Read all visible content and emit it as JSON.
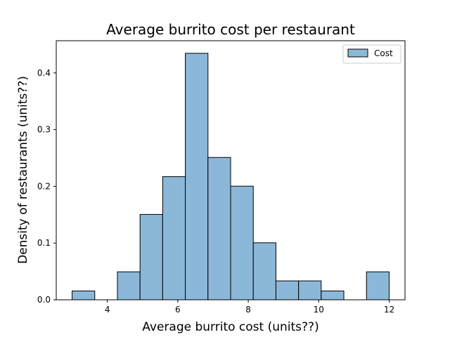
{
  "chart_data": {
    "type": "bar",
    "title": "Average burrito cost per restaurant",
    "xlabel": "Average burrito cost (units??)",
    "ylabel": "Density of restaurants (units??)",
    "xlim": [
      2.55,
      12.45
    ],
    "ylim": [
      0,
      0.4567
    ],
    "xticks": [
      4,
      6,
      8,
      10,
      12
    ],
    "xtick_labels": [
      "4",
      "6",
      "8",
      "10",
      "12"
    ],
    "yticks": [
      0.0,
      0.1,
      0.2,
      0.3,
      0.4
    ],
    "ytick_labels": [
      "0.0",
      "0.1",
      "0.2",
      "0.3",
      "0.4"
    ],
    "grid": false,
    "legend": {
      "placement": "top-right"
    },
    "series": [
      {
        "name": "Cost",
        "color": "#8bb8d9",
        "edge_color": "#000000",
        "bins": [
          {
            "x0": 3.0,
            "x1": 3.643,
            "value": 0.0156
          },
          {
            "x0": 3.643,
            "x1": 4.286,
            "value": 0.0
          },
          {
            "x0": 4.286,
            "x1": 4.929,
            "value": 0.0493
          },
          {
            "x0": 4.929,
            "x1": 5.571,
            "value": 0.1505
          },
          {
            "x0": 5.571,
            "x1": 6.214,
            "value": 0.2171
          },
          {
            "x0": 6.214,
            "x1": 6.857,
            "value": 0.4345
          },
          {
            "x0": 6.857,
            "x1": 7.5,
            "value": 0.2509
          },
          {
            "x0": 7.5,
            "x1": 8.143,
            "value": 0.2003
          },
          {
            "x0": 8.143,
            "x1": 8.786,
            "value": 0.1005
          },
          {
            "x0": 8.786,
            "x1": 9.429,
            "value": 0.0333
          },
          {
            "x0": 9.429,
            "x1": 10.071,
            "value": 0.0333
          },
          {
            "x0": 10.071,
            "x1": 10.714,
            "value": 0.0156
          },
          {
            "x0": 10.714,
            "x1": 11.357,
            "value": 0.0
          },
          {
            "x0": 11.357,
            "x1": 12.0,
            "value": 0.0493
          }
        ]
      }
    ]
  }
}
